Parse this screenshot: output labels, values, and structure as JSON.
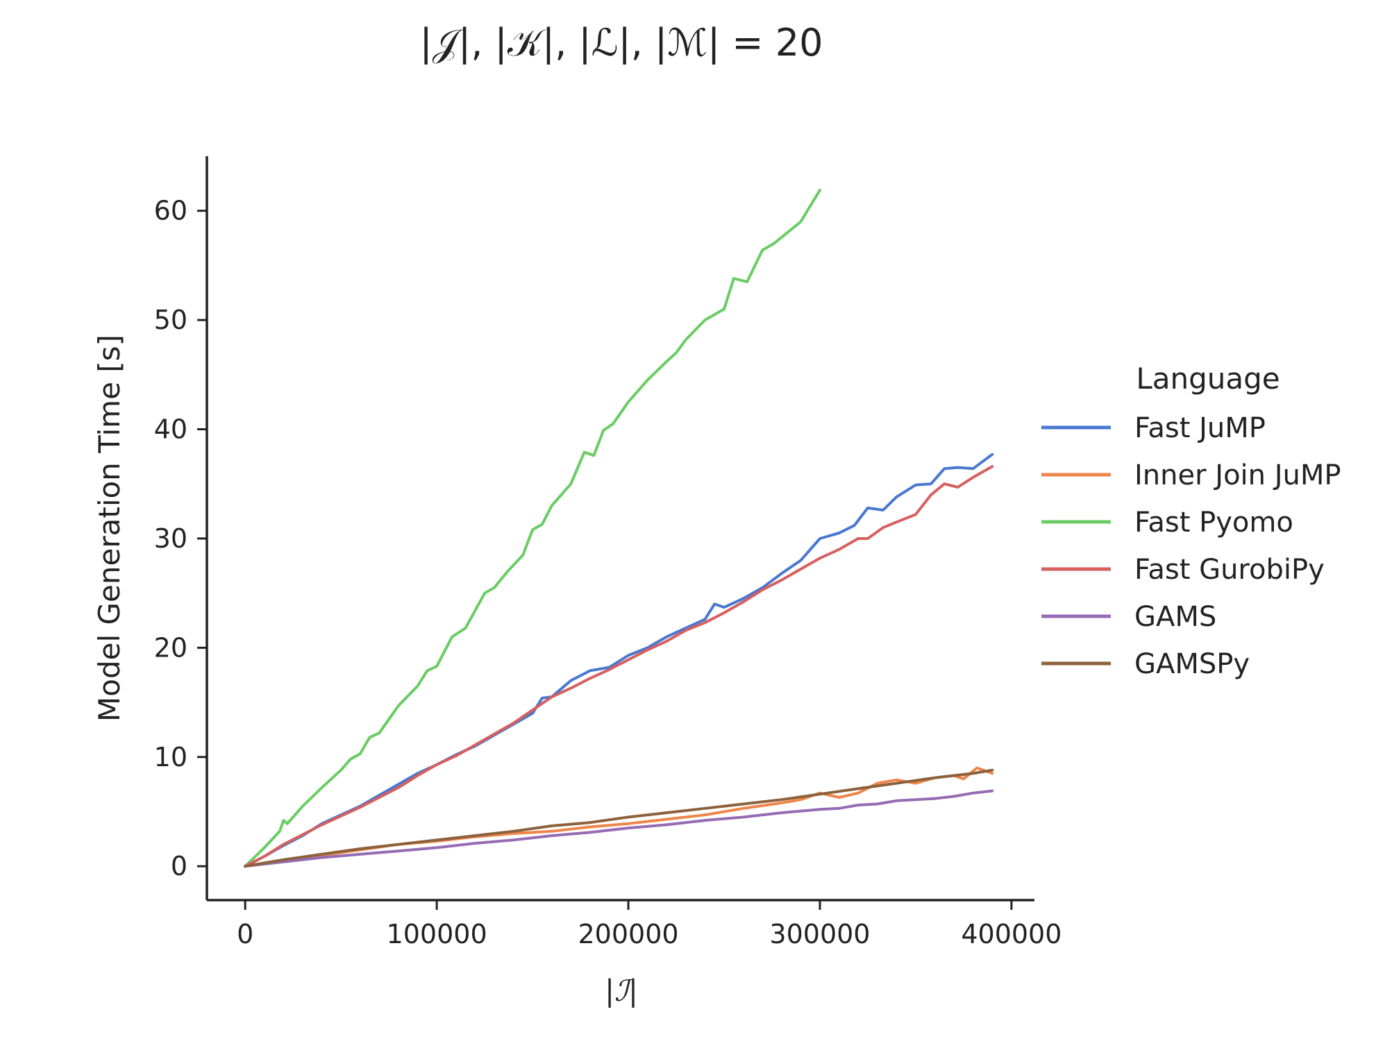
{
  "chart_data": {
    "type": "line",
    "title": "|𝒥|, |𝒦|, |ℒ|, |ℳ| = 20",
    "xlabel": "|ℐ|",
    "ylabel": "Model Generation Time [s]",
    "xlim": [
      -20000,
      412000
    ],
    "ylim": [
      -3.1,
      65
    ],
    "xticks": [
      0,
      100000,
      200000,
      300000,
      400000
    ],
    "xtick_labels": [
      "0",
      "100000",
      "200000",
      "300000",
      "400000"
    ],
    "yticks": [
      0,
      10,
      20,
      30,
      40,
      50,
      60
    ],
    "ytick_labels": [
      "0",
      "10",
      "20",
      "30",
      "40",
      "50",
      "60"
    ],
    "legend": {
      "title": "Language",
      "placement": "right"
    },
    "series": [
      {
        "name": "Fast JuMP",
        "color": "#4878d0",
        "x": [
          0,
          10000,
          20000,
          30000,
          40000,
          50000,
          60000,
          70000,
          80000,
          90000,
          100000,
          110000,
          120000,
          130000,
          140000,
          150000,
          155000,
          160000,
          170000,
          180000,
          190000,
          200000,
          210000,
          220000,
          230000,
          240000,
          245000,
          250000,
          260000,
          270000,
          280000,
          290000,
          300000,
          310000,
          318000,
          325000,
          333000,
          340000,
          350000,
          358000,
          365000,
          372000,
          380000,
          390000
        ],
        "values": [
          0,
          0.9,
          1.9,
          2.8,
          3.9,
          4.7,
          5.5,
          6.5,
          7.5,
          8.5,
          9.3,
          10.2,
          11.0,
          12.0,
          13.0,
          14.0,
          15.4,
          15.5,
          17.0,
          17.9,
          18.2,
          19.3,
          20.0,
          21.0,
          21.8,
          22.6,
          24.0,
          23.7,
          24.5,
          25.5,
          26.8,
          28.0,
          30.0,
          30.5,
          31.2,
          32.8,
          32.6,
          33.8,
          34.9,
          35.0,
          36.4,
          36.5,
          36.4,
          37.7
        ]
      },
      {
        "name": "Inner Join JuMP",
        "color": "#ee854a",
        "x": [
          0,
          20000,
          40000,
          60000,
          80000,
          100000,
          120000,
          140000,
          160000,
          180000,
          200000,
          220000,
          240000,
          260000,
          280000,
          290000,
          300000,
          310000,
          320000,
          330000,
          340000,
          350000,
          360000,
          370000,
          375000,
          382000,
          390000
        ],
        "values": [
          0,
          0.5,
          1.0,
          1.5,
          2.0,
          2.3,
          2.7,
          3.0,
          3.2,
          3.6,
          3.9,
          4.3,
          4.7,
          5.3,
          5.8,
          6.1,
          6.7,
          6.3,
          6.7,
          7.6,
          7.9,
          7.6,
          8.1,
          8.3,
          8.0,
          9.0,
          8.5
        ]
      },
      {
        "name": "Fast Pyomo",
        "color": "#6acc64",
        "x": [
          0,
          10000,
          18000,
          20000,
          22000,
          30000,
          40000,
          50000,
          55000,
          60000,
          65000,
          70000,
          80000,
          90000,
          95000,
          100000,
          108000,
          115000,
          125000,
          130000,
          137000,
          145000,
          150000,
          155000,
          160000,
          170000,
          177000,
          182000,
          187000,
          192000,
          200000,
          210000,
          220000,
          225000,
          230000,
          240000,
          250000,
          255000,
          262000,
          270000,
          276000,
          283000,
          290000,
          300000
        ],
        "values": [
          0,
          1.7,
          3.2,
          4.2,
          3.9,
          5.5,
          7.2,
          8.8,
          9.8,
          10.3,
          11.8,
          12.2,
          14.7,
          16.5,
          17.9,
          18.3,
          21.0,
          21.8,
          25.0,
          25.5,
          27.0,
          28.5,
          30.8,
          31.3,
          33.0,
          35.0,
          37.9,
          37.6,
          39.9,
          40.5,
          42.5,
          44.5,
          46.2,
          47.0,
          48.2,
          50.0,
          51.0,
          53.8,
          53.5,
          56.4,
          57.0,
          58.0,
          59.0,
          61.9
        ]
      },
      {
        "name": "Fast GurobiPy",
        "color": "#d65f5f",
        "x": [
          0,
          10000,
          20000,
          30000,
          40000,
          50000,
          60000,
          70000,
          80000,
          90000,
          100000,
          110000,
          120000,
          130000,
          140000,
          150000,
          160000,
          170000,
          180000,
          190000,
          200000,
          210000,
          220000,
          230000,
          240000,
          250000,
          260000,
          270000,
          280000,
          290000,
          300000,
          310000,
          320000,
          325000,
          333000,
          340000,
          350000,
          358000,
          365000,
          372000,
          380000,
          390000
        ],
        "values": [
          0,
          0.9,
          2.0,
          2.9,
          3.8,
          4.6,
          5.4,
          6.3,
          7.2,
          8.3,
          9.3,
          10.1,
          11.1,
          12.1,
          13.1,
          14.3,
          15.5,
          16.3,
          17.2,
          18.0,
          18.9,
          19.8,
          20.6,
          21.6,
          22.3,
          23.2,
          24.2,
          25.3,
          26.2,
          27.2,
          28.2,
          29.0,
          30.0,
          30.0,
          31.0,
          31.5,
          32.2,
          34.0,
          35.0,
          34.7,
          35.6,
          36.6
        ]
      },
      {
        "name": "GAMS",
        "color": "#956cb4",
        "x": [
          0,
          20000,
          40000,
          60000,
          80000,
          100000,
          120000,
          140000,
          160000,
          180000,
          200000,
          220000,
          240000,
          260000,
          280000,
          300000,
          310000,
          320000,
          330000,
          340000,
          350000,
          360000,
          370000,
          380000,
          390000
        ],
        "values": [
          0,
          0.4,
          0.8,
          1.1,
          1.4,
          1.7,
          2.1,
          2.4,
          2.8,
          3.1,
          3.5,
          3.8,
          4.2,
          4.5,
          4.9,
          5.2,
          5.3,
          5.6,
          5.7,
          6.0,
          6.1,
          6.2,
          6.4,
          6.7,
          6.9
        ]
      },
      {
        "name": "GAMSPy",
        "color": "#8c613c",
        "x": [
          0,
          20000,
          40000,
          60000,
          80000,
          100000,
          120000,
          140000,
          160000,
          180000,
          200000,
          220000,
          240000,
          260000,
          280000,
          300000,
          320000,
          340000,
          360000,
          380000,
          390000
        ],
        "values": [
          0,
          0.6,
          1.1,
          1.6,
          2.0,
          2.4,
          2.8,
          3.2,
          3.7,
          4.0,
          4.5,
          4.9,
          5.3,
          5.7,
          6.1,
          6.6,
          7.1,
          7.6,
          8.1,
          8.5,
          8.8
        ]
      }
    ]
  }
}
